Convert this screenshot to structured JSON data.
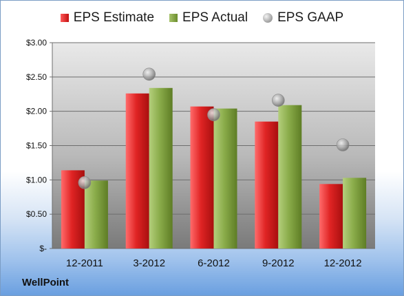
{
  "chart_data": {
    "type": "bar",
    "categories": [
      "12-2011",
      "3-2012",
      "6-2012",
      "9-2012",
      "12-2012"
    ],
    "series": [
      {
        "name": "EPS Estimate",
        "kind": "bar",
        "color": "#d11f1f",
        "values": [
          1.14,
          2.26,
          2.07,
          1.85,
          0.94
        ]
      },
      {
        "name": "EPS Actual",
        "kind": "bar",
        "color": "#86a847",
        "values": [
          0.99,
          2.34,
          2.04,
          2.09,
          1.03
        ]
      },
      {
        "name": "EPS GAAP",
        "kind": "scatter",
        "color": "#b0b0b0",
        "values": [
          0.96,
          2.54,
          1.95,
          2.16,
          1.51
        ]
      }
    ],
    "ylim": [
      0,
      3
    ],
    "yticks": [
      0,
      0.5,
      1,
      1.5,
      2,
      2.5,
      3
    ],
    "ytick_labels": [
      "$-",
      "$0.50",
      "$1.00",
      "$1.50",
      "$2.00",
      "$2.50",
      "$3.00"
    ],
    "grid": true,
    "legend_position": "top"
  },
  "legend": {
    "estimate": "EPS Estimate",
    "actual": "EPS Actual",
    "gaap": "EPS GAAP"
  },
  "brand": "WellPoint"
}
